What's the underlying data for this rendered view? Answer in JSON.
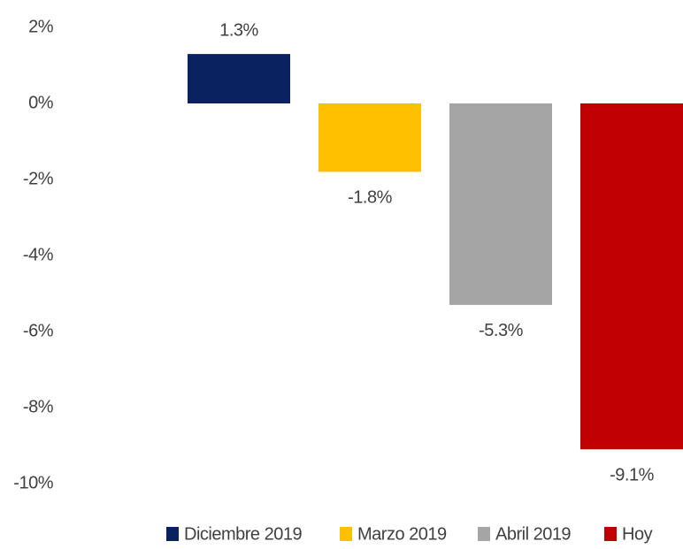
{
  "chart_data": {
    "type": "bar",
    "series": [
      {
        "name": "Diciembre 2019",
        "color": "#0b2260",
        "values": [
          1.3
        ],
        "value_labels": [
          "1.3%"
        ]
      },
      {
        "name": "Marzo 2019",
        "color": "#ffc000",
        "values": [
          -1.8
        ],
        "value_labels": [
          "-1.8%"
        ]
      },
      {
        "name": "Abril 2019",
        "color": "#a5a5a5",
        "values": [
          -5.3
        ],
        "value_labels": [
          "-5.3%"
        ]
      },
      {
        "name": "Hoy",
        "color": "#c00000",
        "values": [
          -9.1
        ],
        "value_labels": [
          "-9.1%"
        ]
      }
    ],
    "ylim": [
      -10,
      2
    ],
    "yticks": [
      {
        "value": 2,
        "label": "2%"
      },
      {
        "value": 0,
        "label": "0%"
      },
      {
        "value": -2,
        "label": "-2%"
      },
      {
        "value": -4,
        "label": "-4%"
      },
      {
        "value": -6,
        "label": "-6%"
      },
      {
        "value": -8,
        "label": "-8%"
      },
      {
        "value": -10,
        "label": "-10%"
      }
    ],
    "grid": false,
    "legend": "bottom"
  }
}
